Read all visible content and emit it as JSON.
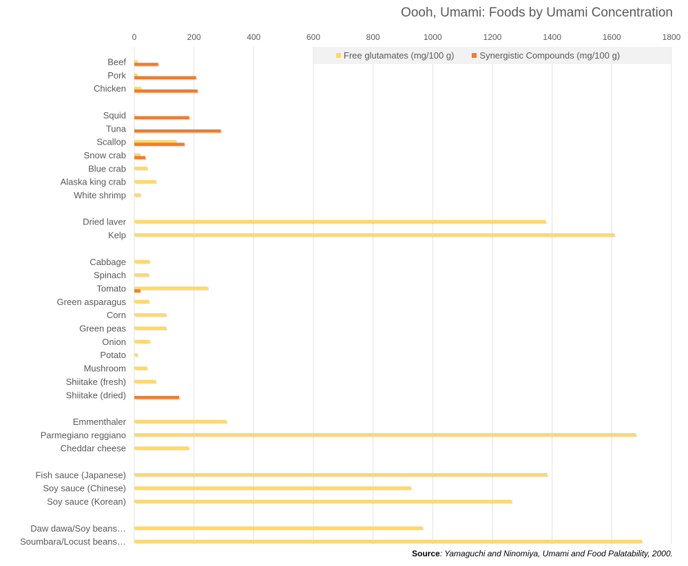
{
  "chart_data": {
    "type": "bar",
    "orientation": "horizontal",
    "title": "Oooh, Umami: Foods by Umami Concentration",
    "xlim": [
      0,
      1800
    ],
    "x_ticks": [
      0,
      200,
      400,
      600,
      800,
      1000,
      1200,
      1400,
      1600,
      1800
    ],
    "x_tick_labels": [
      "0",
      "200",
      "400",
      "600",
      "800",
      "1000",
      "1200",
      "1400",
      "1600",
      "1800"
    ],
    "grid": true,
    "legend_position": "top-right",
    "categories": [
      "Beef",
      "Pork",
      "Chicken",
      "",
      "Squid",
      "Tuna",
      "Scallop",
      "Snow crab",
      "Blue crab",
      "Alaska king crab",
      "White shrimp",
      "",
      "Dried laver",
      "Kelp",
      "",
      "Cabbage",
      "Spinach",
      "Tomato",
      "Green asparagus",
      "Corn",
      "Green peas",
      "Onion",
      "Potato",
      "Mushroom",
      "Shiitake (fresh)",
      "Shiitake (dried)",
      "",
      "Emmenthaler",
      "Parmegiano reggiano",
      "Cheddar cheese",
      "",
      "Fish sauce (Japanese)",
      "Soy sauce (Chinese)",
      "Soy sauce (Korean)",
      "",
      "Daw dawa/Soy beans…",
      "Soumbara/Locust beans…"
    ],
    "series": [
      {
        "name": "Free glutamates (mg/100 g)",
        "color": "#ffd966",
        "values": [
          10,
          9,
          22,
          null,
          2,
          1,
          140,
          19,
          43,
          72,
          20,
          null,
          1378,
          1608,
          null,
          50,
          48,
          246,
          49,
          106,
          106,
          51,
          10,
          42,
          71,
          0,
          null,
          308,
          1680,
          182,
          null,
          1383,
          926,
          1264,
          null,
          965,
          1700
        ]
      },
      {
        "name": "Synergistic Compounds (mg/100 g)",
        "color": "#ed7d31",
        "values": [
          80,
          207,
          212,
          null,
          184,
          290,
          168,
          37,
          null,
          null,
          null,
          null,
          null,
          null,
          null,
          null,
          null,
          20,
          null,
          null,
          null,
          null,
          null,
          null,
          null,
          150,
          null,
          null,
          null,
          null,
          null,
          null,
          null,
          null,
          null,
          null,
          null
        ]
      }
    ]
  },
  "source": {
    "label": "Source",
    "text": ": Yamaguchi and Ninomiya, Umami and Food Palatability, 2000."
  }
}
